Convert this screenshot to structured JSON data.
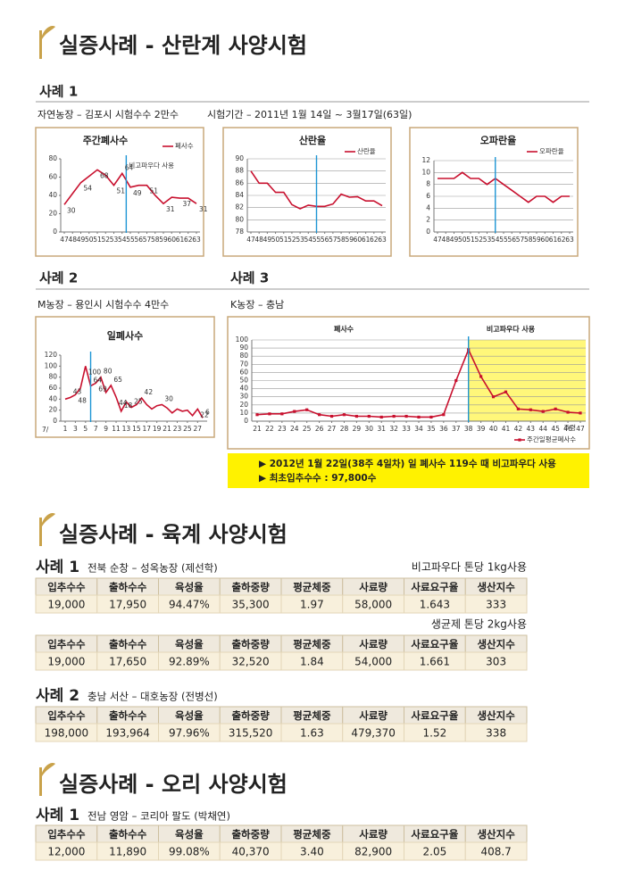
{
  "section1": {
    "title": "실증사례 - 산란계 사양시험",
    "case1": {
      "label": "사례 1",
      "farm": "자연농장 – 김포시 시험수수 2만수",
      "period": "시험기간 – 2011년 1월 14일 ~ 3월17일(63일)"
    },
    "case2": {
      "label": "사례 2",
      "farm": "M농장 – 용인시 시험수수 4만수"
    },
    "case3": {
      "label": "사례 3",
      "farm": "K농장 – 충남"
    },
    "note": [
      "▶ 2012년 1월 22일(38주 4일차) 일 폐사수 119수 때 비고파우다 사용",
      "▶ 최초입추수수 : 97,800수"
    ]
  },
  "chart_data": [
    {
      "type": "line",
      "title": "주간폐사수",
      "series_name": "폐사수",
      "color": "#c8102e",
      "annotation": "비고파우다 사용",
      "marker_x": 54.5,
      "grid": false,
      "x": [
        47,
        48,
        49,
        50,
        51,
        52,
        53,
        54,
        55,
        56,
        57,
        58,
        59,
        60,
        61,
        62,
        63
      ],
      "values": [
        30,
        42,
        54,
        61,
        68,
        62,
        51,
        64,
        49,
        51,
        51,
        40,
        31,
        38,
        37,
        37,
        31
      ],
      "value_labels": [
        30,
        null,
        54,
        null,
        68,
        null,
        51,
        64,
        49,
        null,
        51,
        null,
        31,
        null,
        37,
        null,
        31
      ],
      "xlim": [
        47,
        63
      ],
      "xticks": [
        47,
        48,
        49,
        50,
        51,
        52,
        53,
        54,
        55,
        56,
        57,
        58,
        59,
        60,
        61,
        62,
        63
      ],
      "ylim": [
        0,
        80
      ],
      "yticks": [
        0,
        20,
        40,
        60,
        80
      ]
    },
    {
      "type": "line",
      "title": "산란율",
      "series_name": "산란율",
      "color": "#c8102e",
      "marker_x": 55,
      "grid": true,
      "x": [
        47,
        48,
        49,
        50,
        51,
        52,
        53,
        54,
        55,
        56,
        57,
        58,
        59,
        60,
        61,
        62,
        63
      ],
      "values": [
        88,
        86,
        86,
        84.5,
        84.5,
        82.5,
        81.8,
        82.4,
        82.2,
        82.2,
        82.6,
        84.2,
        83.7,
        83.8,
        83.1,
        83.1,
        82.3
      ],
      "xlim": [
        47,
        63
      ],
      "xticks": [
        47,
        48,
        49,
        50,
        51,
        52,
        53,
        54,
        55,
        56,
        57,
        58,
        59,
        60,
        61,
        62,
        63
      ],
      "ylim": [
        78,
        90
      ],
      "yticks": [
        78,
        80,
        82,
        84,
        86,
        88,
        90
      ]
    },
    {
      "type": "line",
      "title": "오파란율",
      "series_name": "오파란율",
      "color": "#c8102e",
      "marker_x": 54,
      "grid": true,
      "x": [
        47,
        48,
        49,
        50,
        51,
        52,
        53,
        54,
        55,
        56,
        57,
        58,
        59,
        60,
        61,
        62,
        63
      ],
      "values": [
        9,
        9,
        9,
        10,
        9,
        9,
        8,
        9,
        8,
        7,
        6,
        5,
        6,
        6,
        5,
        6,
        6
      ],
      "xlim": [
        47,
        63
      ],
      "xticks": [
        47,
        48,
        49,
        50,
        51,
        52,
        53,
        54,
        55,
        56,
        57,
        58,
        59,
        60,
        61,
        62,
        63
      ],
      "ylim": [
        0,
        12
      ],
      "yticks": [
        0,
        2,
        4,
        6,
        8,
        10,
        12
      ]
    },
    {
      "type": "line",
      "title": "일폐사수",
      "color": "#c8102e",
      "marker_x": 6,
      "grid": false,
      "xlabel": "7/",
      "x": [
        1,
        2,
        3,
        4,
        5,
        6,
        7,
        8,
        9,
        10,
        11,
        12,
        13,
        14,
        15,
        16,
        17,
        18,
        19,
        20,
        21,
        22,
        23,
        24,
        25,
        26,
        27,
        28
      ],
      "values": [
        40,
        43,
        48,
        60,
        100,
        64,
        69,
        80,
        52,
        65,
        44,
        18,
        35,
        25,
        30,
        42,
        30,
        22,
        28,
        30,
        24,
        15,
        22,
        18,
        20,
        10,
        22,
        6
      ],
      "value_labels": [
        null,
        43,
        48,
        null,
        100,
        64,
        69,
        80,
        null,
        65,
        44,
        18,
        null,
        25,
        null,
        42,
        null,
        null,
        null,
        30,
        null,
        null,
        null,
        null,
        null,
        null,
        22,
        6
      ],
      "xlim": [
        1,
        28
      ],
      "xticks": [
        1,
        3,
        5,
        7,
        9,
        11,
        13,
        15,
        17,
        19,
        21,
        23,
        25,
        27
      ],
      "ylim": [
        0,
        120
      ],
      "yticks": [
        0,
        20,
        40,
        60,
        80,
        100,
        120
      ]
    },
    {
      "type": "line",
      "headings": [
        "폐사수",
        "비고파우다 사용"
      ],
      "series_name": "주간일평균폐사수",
      "color": "#c8102e",
      "marker_x": 38,
      "highlight": "#fff77a",
      "grid": true,
      "markers": true,
      "xlabel": "주령",
      "x": [
        21,
        22,
        23,
        24,
        25,
        26,
        27,
        28,
        29,
        30,
        31,
        32,
        33,
        34,
        35,
        36,
        37,
        38,
        39,
        40,
        41,
        42,
        43,
        44,
        45,
        46,
        47
      ],
      "values": [
        8,
        9,
        9,
        12,
        14,
        8,
        6,
        8,
        6,
        6,
        5,
        6,
        6,
        5,
        5,
        8,
        50,
        88,
        55,
        30,
        36,
        15,
        14,
        12,
        15,
        11,
        10
      ],
      "xlim": [
        21,
        47
      ],
      "xticks": [
        21,
        22,
        23,
        24,
        25,
        26,
        27,
        28,
        29,
        30,
        31,
        32,
        33,
        34,
        35,
        36,
        37,
        38,
        39,
        40,
        41,
        42,
        43,
        44,
        45,
        46,
        47
      ],
      "ylim": [
        0,
        100
      ],
      "yticks": [
        0,
        10,
        20,
        30,
        40,
        50,
        60,
        70,
        80,
        90,
        100
      ]
    }
  ],
  "section2": {
    "title": "실증사례 - 육계 사양시험",
    "case1": {
      "label": "사례 1",
      "farm": "전북 순창 – 성옥농장 (제선학)",
      "tables": [
        {
          "caption": "비고파우다 톤당 1kg사용",
          "headers": [
            "입추수수",
            "출하수수",
            "육성율",
            "출하중량",
            "평균체중",
            "사료량",
            "사료요구율",
            "생산지수"
          ],
          "row": [
            "19,000",
            "17,950",
            "94.47%",
            "35,300",
            "1.97",
            "58,000",
            "1.643",
            "333"
          ]
        },
        {
          "caption": "생균제 톤당 2kg사용",
          "headers": [
            "입추수수",
            "출하수수",
            "육성율",
            "출하중량",
            "평균체중",
            "사료량",
            "사료요구율",
            "생산지수"
          ],
          "row": [
            "19,000",
            "17,650",
            "92.89%",
            "32,520",
            "1.84",
            "54,000",
            "1.661",
            "303"
          ]
        }
      ]
    },
    "case2": {
      "label": "사례 2",
      "farm": "충남 서산 – 대호농장 (전병선)",
      "table": {
        "headers": [
          "입추수수",
          "출하수수",
          "육성율",
          "출하중량",
          "평균체중",
          "사료량",
          "사료요구율",
          "생산지수"
        ],
        "row": [
          "198,000",
          "193,964",
          "97.96%",
          "315,520",
          "1.63",
          "479,370",
          "1.52",
          "338"
        ]
      }
    }
  },
  "section3": {
    "title": "실증사례 - 오리 사양시험",
    "case1": {
      "label": "사례 1",
      "farm": "전남 영암 – 코리아 팔도 (박채연)",
      "table": {
        "headers": [
          "입추수수",
          "출하수수",
          "육성율",
          "출하중량",
          "평균체중",
          "사료량",
          "사료요구율",
          "생산지수"
        ],
        "row": [
          "12,000",
          "11,890",
          "99.08%",
          "40,370",
          "3.40",
          "82,900",
          "2.05",
          "408.7"
        ]
      }
    }
  }
}
